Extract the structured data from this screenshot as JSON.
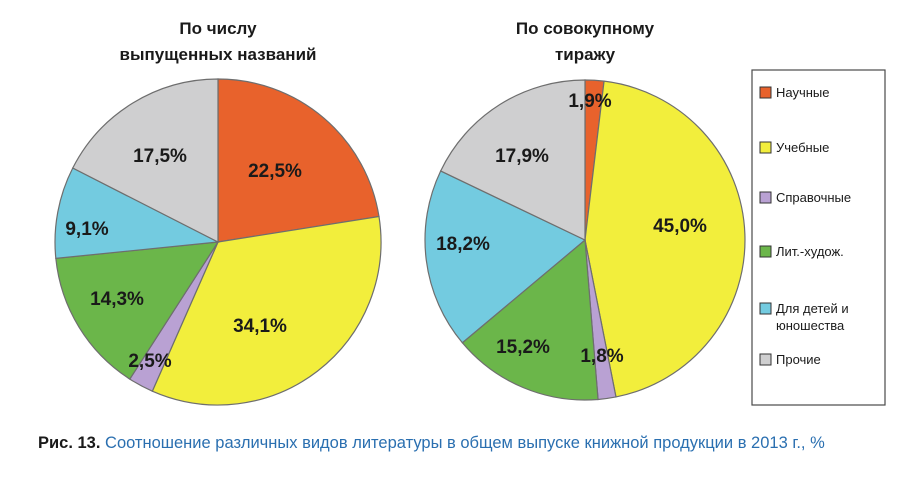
{
  "chart_data": [
    {
      "type": "pie",
      "title_lines": [
        "По числу",
        "выпущенных названий"
      ],
      "categories": [
        "Научные",
        "Учебные",
        "Справочные",
        "Лит.-худож.",
        "Для детей и юношества",
        "Прочие"
      ],
      "values": [
        22.5,
        34.1,
        2.5,
        14.3,
        9.1,
        17.5
      ],
      "labels": [
        "22,5%",
        "34,1%",
        "2,5%",
        "14,3%",
        "9,1%",
        "17,5%"
      ]
    },
    {
      "type": "pie",
      "title_lines": [
        "По совокупному",
        "тиражу"
      ],
      "categories": [
        "Научные",
        "Учебные",
        "Справочные",
        "Лит.-худож.",
        "Для детей и юношества",
        "Прочие"
      ],
      "values": [
        1.9,
        45.0,
        1.8,
        15.2,
        18.2,
        17.9
      ],
      "labels": [
        "1,9%",
        "45,0%",
        "1,8%",
        "15,2%",
        "18,2%",
        "17,9%"
      ]
    }
  ],
  "legend": {
    "placement": "right",
    "items": [
      {
        "lines": [
          "Научные"
        ],
        "color": "#e8622c"
      },
      {
        "lines": [
          "Учебные"
        ],
        "color": "#f2ee3c"
      },
      {
        "lines": [
          "Справочные"
        ],
        "color": "#b9a1d3"
      },
      {
        "lines": [
          "Лит.-худож."
        ],
        "color": "#6bb64a"
      },
      {
        "lines": [
          "Для детей и",
          "юношества"
        ],
        "color": "#73cbe0"
      },
      {
        "lines": [
          "Прочие"
        ],
        "color": "#cfcfd0"
      }
    ]
  },
  "caption": {
    "prefix": "Рис. 13.",
    "text": " Соотношение различных видов литературы в общем выпуске книжной продукции в 2013 г., %"
  }
}
